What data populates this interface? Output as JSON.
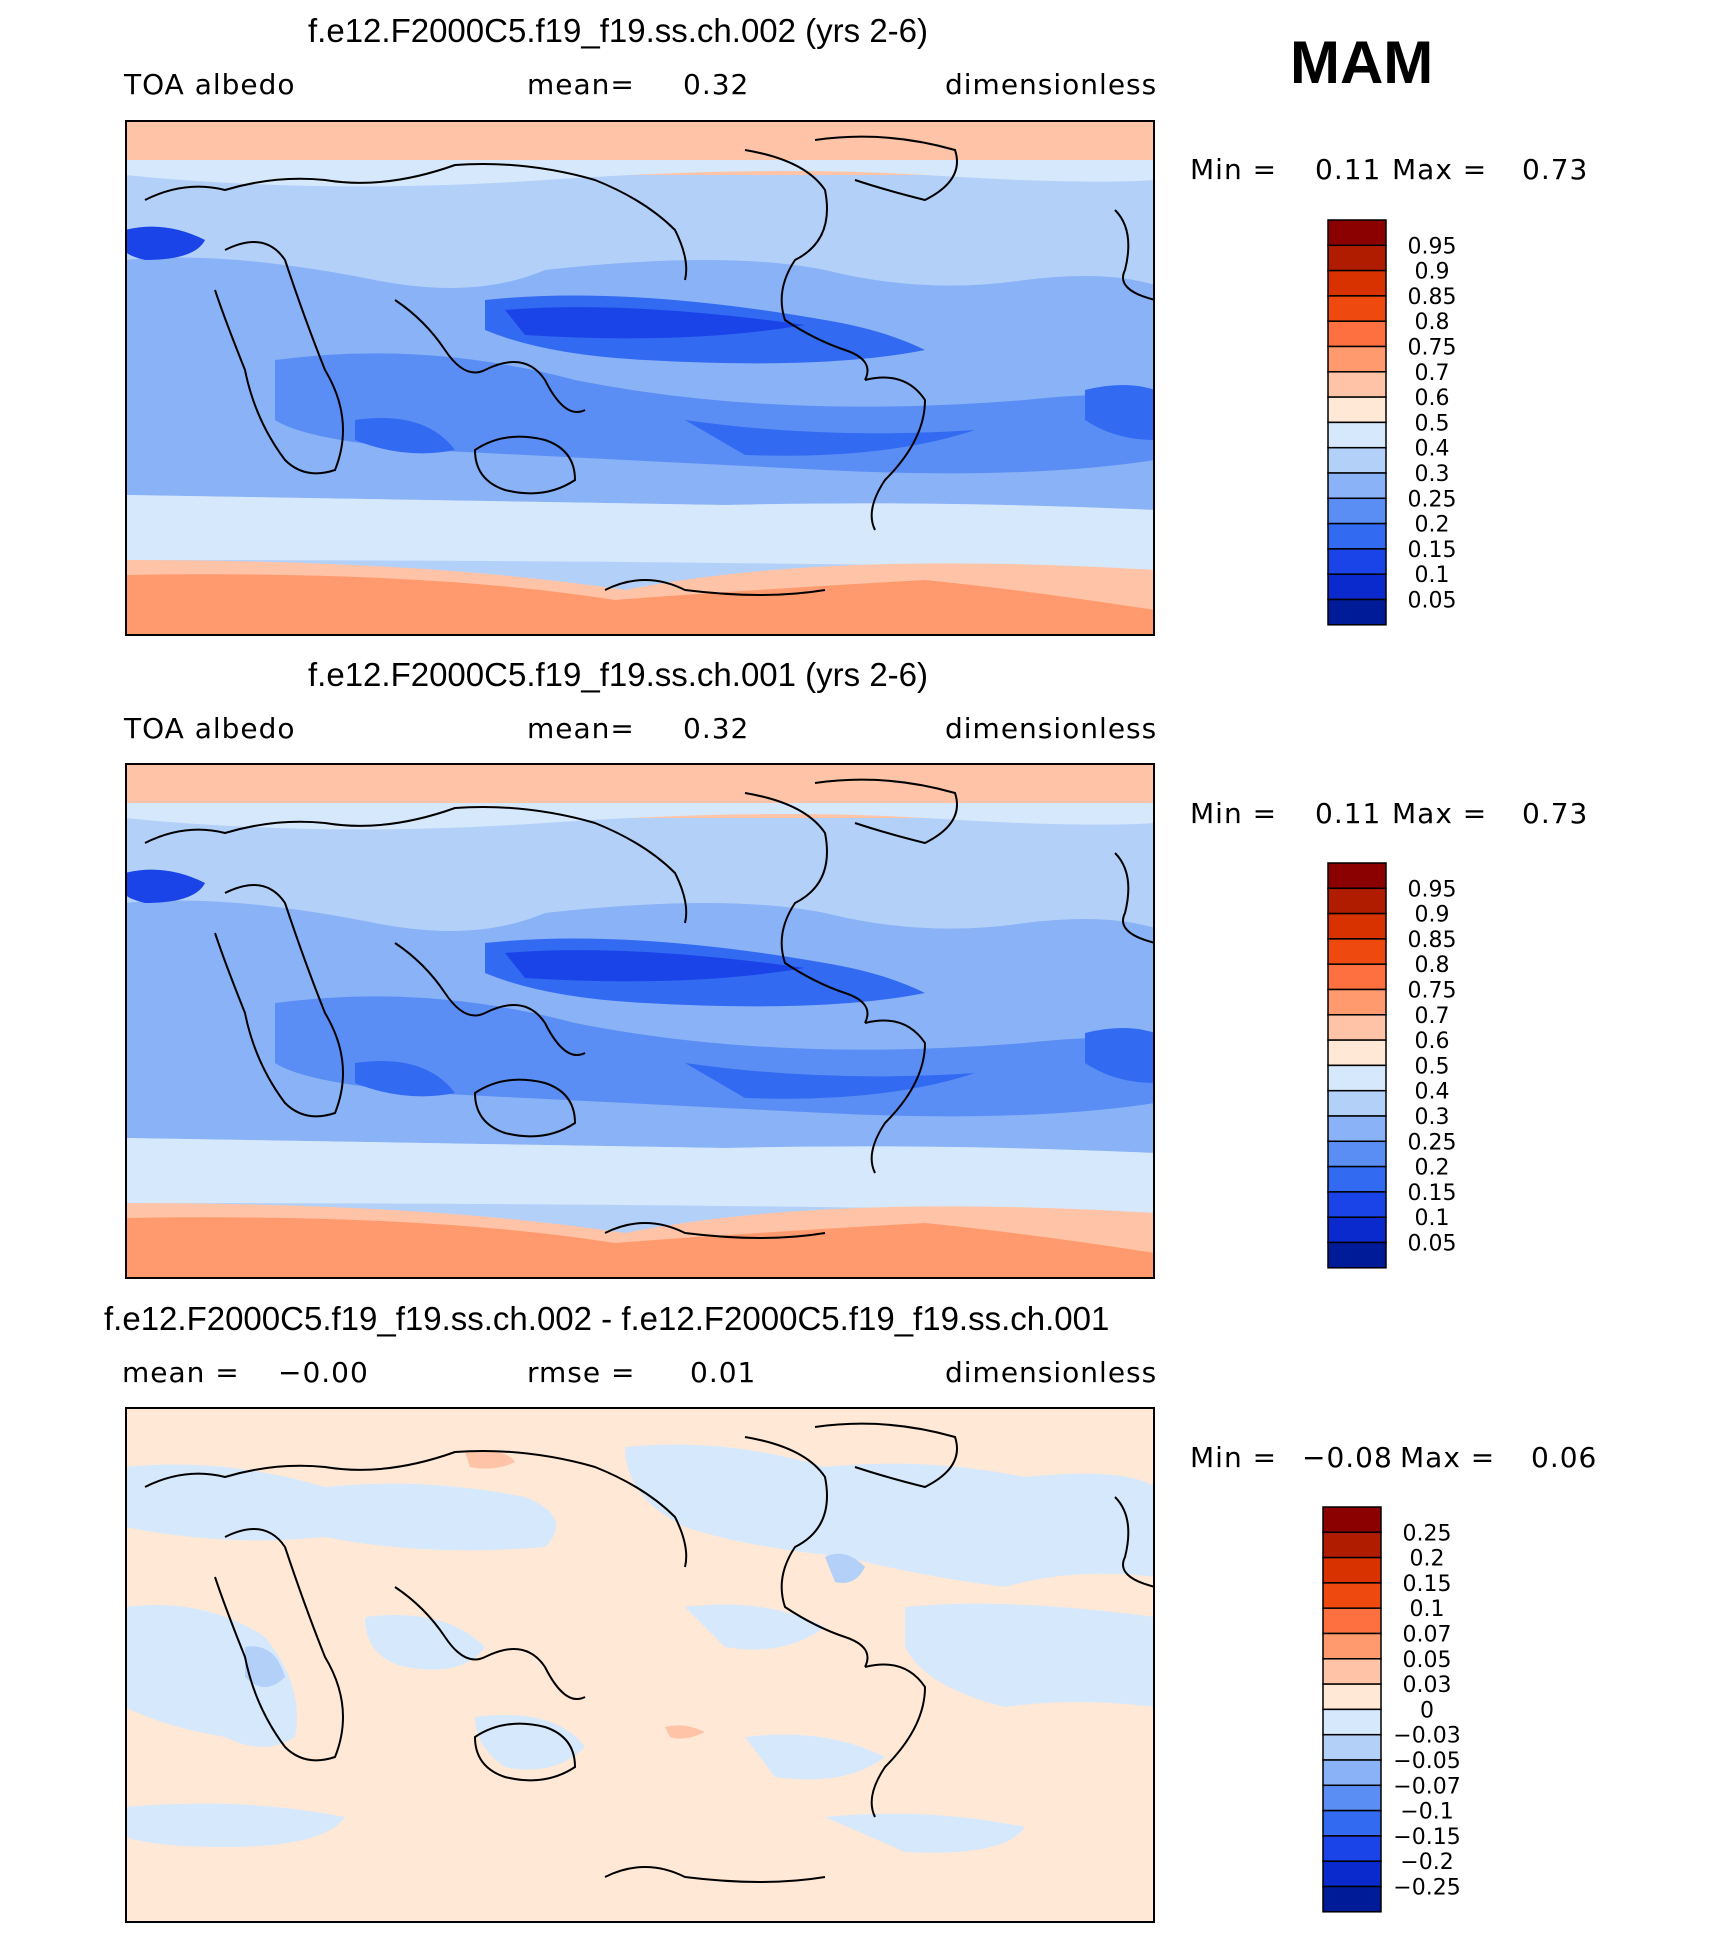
{
  "season": "MAM",
  "panels": [
    {
      "title": "f.e12.F2000C5.f19_f19.ss.ch.002 (yrs 2-6)",
      "left_label": "TOA  albedo",
      "center_label": "mean=",
      "center_value": "0.32",
      "units": "dimensionless",
      "min_label": "Min  =",
      "min_value": "0.11",
      "max_label": "Max  =",
      "max_value": "0.73"
    },
    {
      "title": "f.e12.F2000C5.f19_f19.ss.ch.001 (yrs 2-6)",
      "left_label": "TOA  albedo",
      "center_label": "mean=",
      "center_value": "0.32",
      "units": "dimensionless",
      "min_label": "Min  =",
      "min_value": "0.11",
      "max_label": "Max  =",
      "max_value": "0.73"
    },
    {
      "title": "f.e12.F2000C5.f19_f19.ss.ch.002 - f.e12.F2000C5.f19_f19.ss.ch.001",
      "left_label": "mean  =",
      "left_value": "−0.00",
      "center_label": "rmse  =",
      "center_value": "0.01",
      "units": "dimensionless",
      "min_label": "Min  =",
      "min_value": "−0.08",
      "max_label": "Max  =",
      "max_value": "0.06"
    }
  ],
  "colorbars": {
    "albedo": {
      "labels": [
        "0.95",
        "0.9",
        "0.85",
        "0.8",
        "0.75",
        "0.7",
        "0.6",
        "0.5",
        "0.4",
        "0.3",
        "0.25",
        "0.2",
        "0.15",
        "0.1",
        "0.05"
      ],
      "colors": [
        "#8b0000",
        "#b01c00",
        "#d83200",
        "#ee4a10",
        "#ff7040",
        "#ff9a6e",
        "#ffc4a8",
        "#ffe8d6",
        "#d6e8fb",
        "#b3d0f9",
        "#8ab2f6",
        "#5a8ef4",
        "#336af2",
        "#1a44e8",
        "#0a2acd",
        "#001b98"
      ]
    },
    "difference": {
      "labels": [
        "0.25",
        "0.2",
        "0.15",
        "0.1",
        "0.07",
        "0.05",
        "0.03",
        "0",
        "−0.03",
        "−0.05",
        "−0.07",
        "−0.1",
        "−0.15",
        "−0.2",
        "−0.25"
      ],
      "colors": [
        "#8b0000",
        "#b01c00",
        "#d83200",
        "#ee4a10",
        "#ff7040",
        "#ff9a6e",
        "#ffc4a8",
        "#ffe8d6",
        "#d6e8fb",
        "#b3d0f9",
        "#8ab2f6",
        "#5a8ef4",
        "#336af2",
        "#1a44e8",
        "#0a2acd",
        "#001b98"
      ]
    }
  },
  "field_colors": {
    "polar": "#ffc4a8",
    "antarctic": "#ff9a6e",
    "southern_ocean": "#d6e8fb",
    "land_light": "#b3d0f9",
    "ocean_mid": "#8ab2f6",
    "ocean_dark": "#5a8ef4",
    "ocean_darkest": "#336af2",
    "diff_pos": "#ffe8d6",
    "diff_neg": "#d6e8fb",
    "diff_neg2": "#b3d0f9"
  }
}
